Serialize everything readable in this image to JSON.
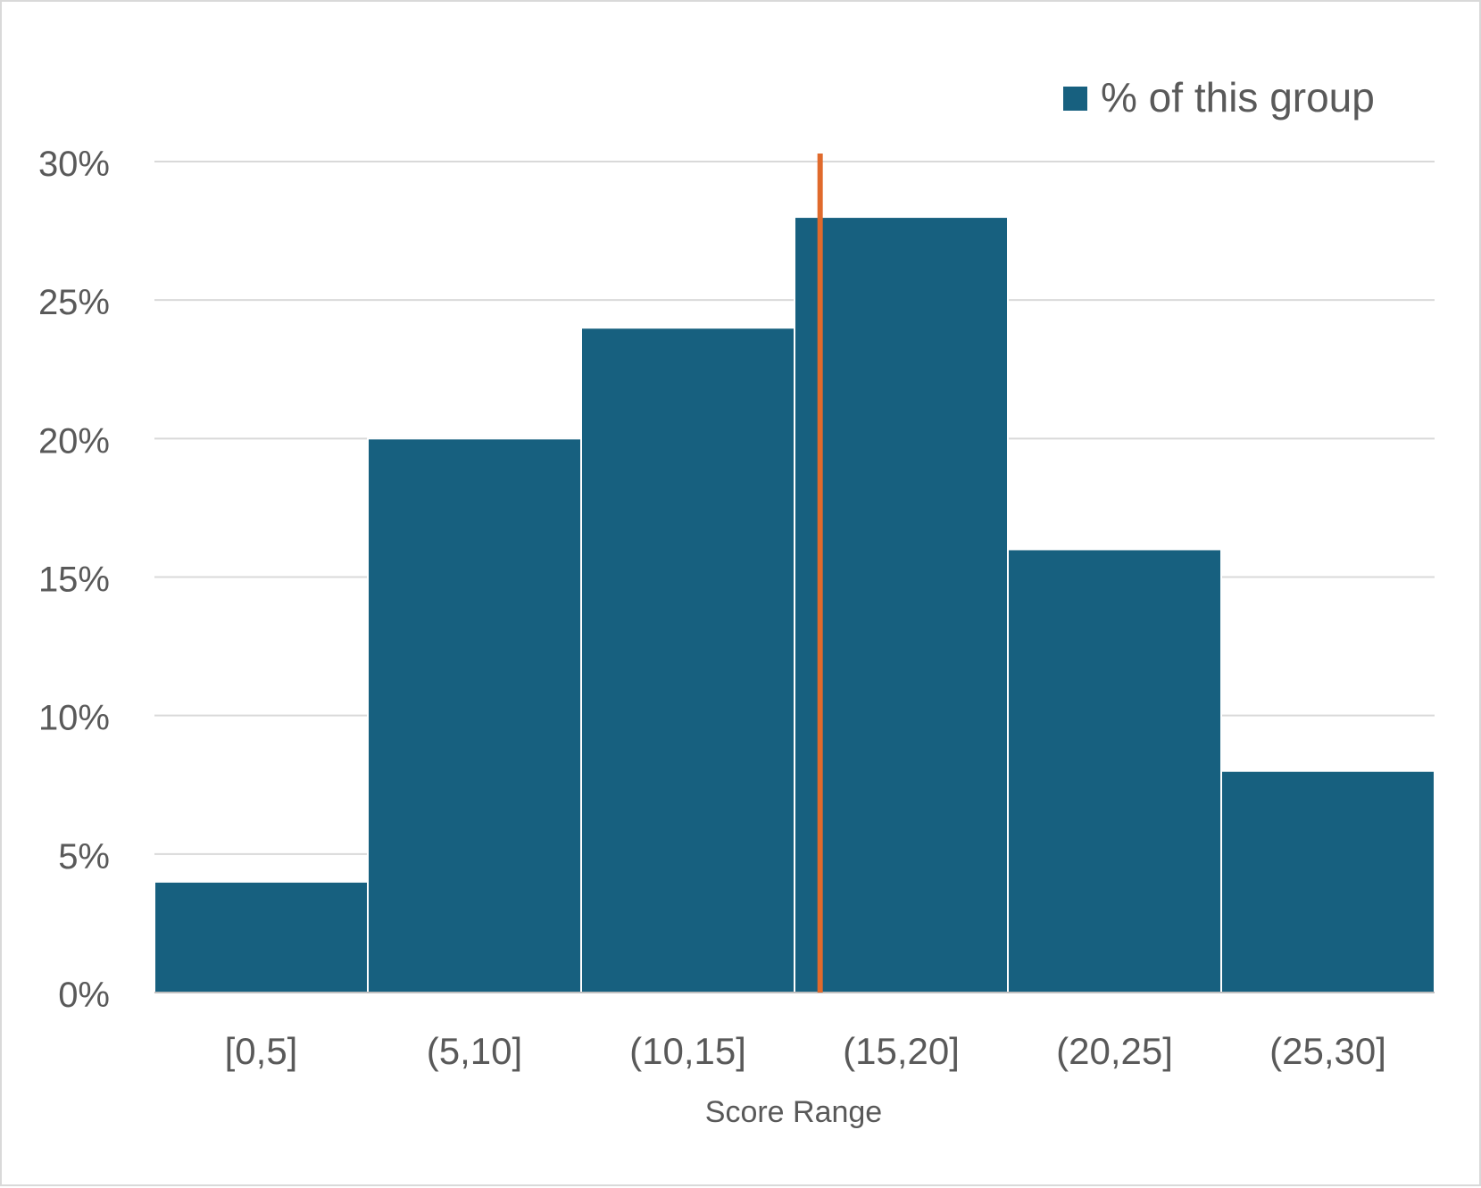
{
  "chart_data": {
    "type": "bar",
    "categories": [
      "[0,5]",
      "(5,10]",
      "(10,15]",
      "(15,20]",
      "(20,25]",
      "(25,30]"
    ],
    "series": [
      {
        "name": "% of this group",
        "values": [
          4,
          20,
          24,
          28,
          16,
          8
        ]
      }
    ],
    "y_ticks": [
      "0%",
      "5%",
      "10%",
      "15%",
      "20%",
      "25%",
      "30%"
    ],
    "ylim": [
      0,
      30
    ],
    "xlabel": "Score Range",
    "ylabel": "",
    "title": "",
    "grid": true,
    "legend_position": "top-right",
    "bar_gap": "none",
    "reference_line": {
      "orientation": "vertical",
      "x": 15.6,
      "color": "#E06A2C"
    },
    "colors": {
      "bar": "#17607F",
      "grid": "#D9D9D9",
      "axis": "#BFBFBF",
      "text": "#595959"
    }
  }
}
